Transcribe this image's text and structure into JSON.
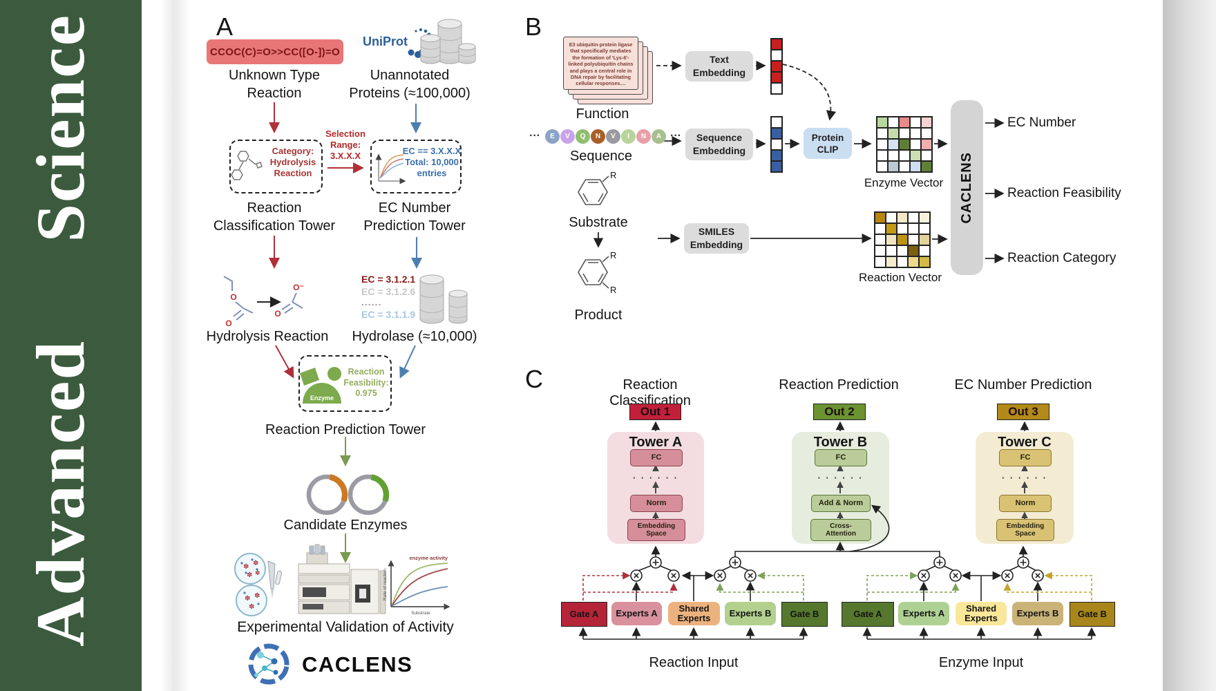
{
  "banner": {
    "word_top": "Science",
    "word_bottom": "Advanced"
  },
  "panel_a": {
    "label": "A",
    "smiles": "CCOC(C)=O>>CC([O-])=O",
    "unknown": "Unknown Type\nReaction",
    "uniprot": "UniProt",
    "unannotated": "Unannotated\nProteins (≈100,000)",
    "selection": "Selection\nRange:\n3.X.X.X",
    "category": "Category:\nHydrolysis\nReaction",
    "ec_box": "EC == 3.X.X.X\nTotal: 10,000\nentries",
    "tower1": "Reaction\nClassification Tower",
    "tower2": "EC Number\nPrediction Tower",
    "ec_list": [
      "EC = 3.1.2.1",
      "EC = 3.1.2.6",
      "......",
      "EC = 3.1.1.9"
    ],
    "hydrolysis": "Hydrolysis Reaction",
    "hydrolase": "Hydrolase (≈10,000)",
    "enzyme": "Enzyme",
    "feasibility": "Reaction\nFeasibility:\n0.975",
    "tower3": "Reaction Prediction Tower",
    "candidates": "Candidate Enzymes",
    "validation": "Experimental Validation of Activity",
    "graph": {
      "series": "enzyme activity",
      "ylabel": "Rate of reaction",
      "xlabel": "Substrate"
    },
    "wordmark": "CACLENS"
  },
  "panel_b": {
    "label": "B",
    "card_text": "E3 ubiquitin-protein ligase that specifically mediates the formation of 'Lys-6'-linked polyubiquitin chains and plays a central role in DNA repair by facilitating cellular responses....",
    "function": "Function",
    "sequence": "Sequence",
    "dots": "···",
    "residues": [
      {
        "letter": "E",
        "color": "#8ba3c7"
      },
      {
        "letter": "V",
        "color": "#c9a3e8"
      },
      {
        "letter": "Q",
        "color": "#8fbf6f"
      },
      {
        "letter": "N",
        "color": "#a85f28"
      },
      {
        "letter": "V",
        "color": "#9a9aa0"
      },
      {
        "letter": "I",
        "color": "#b8d49a"
      },
      {
        "letter": "N",
        "color": "#e8a0a8"
      },
      {
        "letter": "A",
        "color": "#a8bf8f"
      }
    ],
    "text_embedding": "Text\nEmbedding",
    "sequence_embedding": "Sequence\nEmbedding",
    "smiles_embedding": "SMILES\nEmbedding",
    "protein_clip": "Protein\nCLIP",
    "substrate": "Substrate",
    "product": "Product",
    "r_label": "R",
    "enzyme_vector_label": "Enzyme Vector",
    "reaction_vector_label": "Reaction Vector",
    "caclens": "CACLENS",
    "outputs": [
      "EC Number",
      "Reaction Feasibility",
      "Reaction Category"
    ],
    "text_vec": [
      "#c81f1f",
      "#ffffff",
      "#c81f1f",
      "#c81f1f",
      "#ffffff"
    ],
    "seq_vec": [
      "#ffffff",
      "#3a5fa0",
      "#ffffff",
      "#3a5fa0",
      "#3a5fa0"
    ],
    "enzyme_grid": [
      "#b8d79c",
      "#ffffff",
      "#e88a8a",
      "#ffffff",
      "#f6d2d2",
      "#ffffff",
      "#c4dcaa",
      "#ffffff",
      "#ffffff",
      "#ffffff",
      "#ffffff",
      "#d4e2f2",
      "#5f7f36",
      "#ffffff",
      "#f0aeae",
      "#ffffff",
      "#ffffff",
      "#ffffff",
      "#cbe0b2",
      "#ffffff",
      "#ffffff",
      "#bcc8d2",
      "#ffffff",
      "#cfdff2",
      "#607f37"
    ],
    "reaction_grid": [
      "#b8860f",
      "#ffffff",
      "#f2e8c8",
      "#ffffff",
      "#f7f2dd",
      "#ffffff",
      "#c29a18",
      "#ffffff",
      "#ffffff",
      "#ffffff",
      "#ffffff",
      "#f0e5c2",
      "#bd9414",
      "#ffffff",
      "#e3d49a",
      "#ffffff",
      "#ffffff",
      "#ffffff",
      "#7d5f10",
      "#ffffff",
      "#ffffff",
      "#f2ebcd",
      "#ffffff",
      "#eed98a",
      "#d4ba45"
    ]
  },
  "panel_c": {
    "label": "C",
    "headers": [
      "Reaction Classification",
      "Reaction Prediction",
      "EC Number Prediction"
    ],
    "dots": "· · · · · ·",
    "tower_a": {
      "out": "Out 1",
      "title": "Tower A",
      "fc": "FC",
      "mid": "Norm",
      "bottom": "Embedding\nSpace"
    },
    "tower_b": {
      "out": "Out 2",
      "title": "Tower B",
      "fc": "FC",
      "mid": "Add & Norm",
      "bottom": "Cross-\nAttention"
    },
    "tower_c": {
      "out": "Out 3",
      "title": "Tower C",
      "fc": "FC",
      "mid": "Norm",
      "bottom": "Embedding\nSpace"
    },
    "moe_left": {
      "gate_a": "Gate A",
      "experts_a": "Experts A",
      "shared": "Shared\nExperts",
      "experts_b": "Experts B",
      "gate_b": "Gate B"
    },
    "moe_right": {
      "gate_a": "Gate A",
      "experts_a": "Experts A",
      "shared": "Shared\nExperts",
      "experts_b": "Experts B",
      "gate_b": "Gate B"
    },
    "input_left": "Reaction Input",
    "input_right": "Enzyme Input"
  }
}
